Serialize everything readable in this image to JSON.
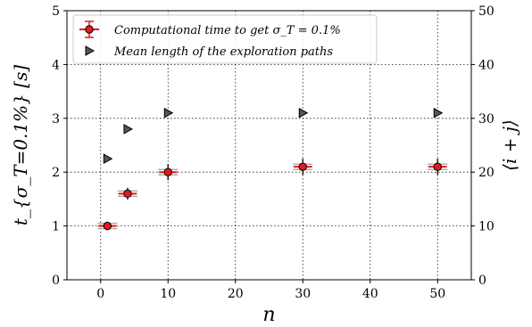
{
  "chart_data": {
    "type": "scatter",
    "xlabel": "n",
    "ylabel_left": "t_{σ_T=0.1%} [s]",
    "ylabel_right": "⟨i + j⟩",
    "xlim": [
      -5,
      55
    ],
    "ylim_left": [
      0,
      5
    ],
    "ylim_right": [
      0,
      50
    ],
    "x_ticks": [
      0,
      10,
      20,
      30,
      40,
      50
    ],
    "y_ticks_left": [
      0,
      1,
      2,
      3,
      4,
      5
    ],
    "y_ticks_right": [
      0,
      10,
      20,
      30,
      40,
      50
    ],
    "grid": true,
    "legend_position": "top-left",
    "series": [
      {
        "name": "Computational time to get σ_T = 0.1%",
        "axis": "left",
        "marker": "circle",
        "color": "#e31a1c",
        "x": [
          1,
          4,
          10,
          30,
          50
        ],
        "y": [
          1.0,
          1.6,
          2.0,
          2.1,
          2.1
        ],
        "y_err": [
          0.03,
          0.06,
          0.1,
          0.1,
          0.1
        ]
      },
      {
        "name": "Mean length of the exploration paths",
        "axis": "right",
        "marker": "triangle-right",
        "color": "#555555",
        "x": [
          1,
          4,
          10,
          30,
          50
        ],
        "y": [
          22.5,
          28,
          31,
          31,
          31
        ]
      }
    ]
  }
}
